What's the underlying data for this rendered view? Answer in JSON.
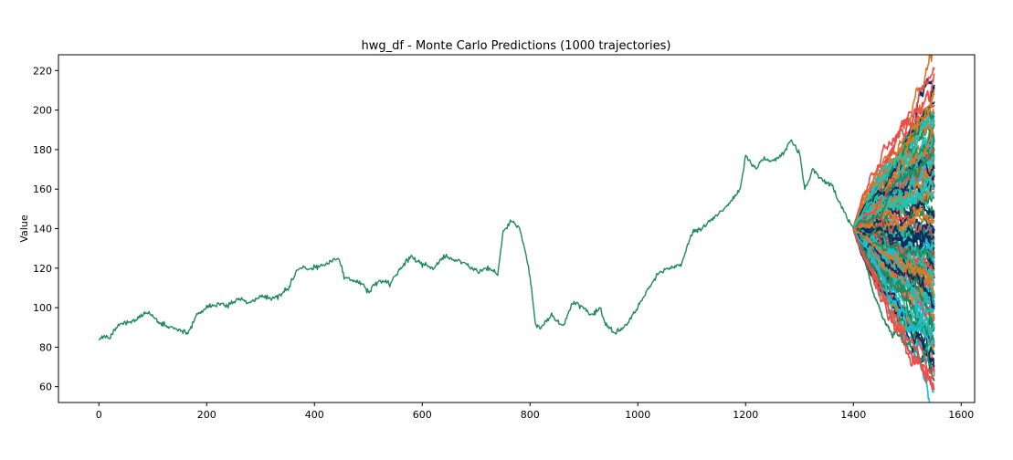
{
  "chart_data": {
    "type": "line",
    "title": "hwg_df - Monte Carlo Predictions (1000 trajectories)",
    "xlabel": "",
    "ylabel": "Value",
    "xlim": [
      -75,
      1625
    ],
    "ylim": [
      52,
      228
    ],
    "x_ticks": [
      0,
      200,
      400,
      600,
      800,
      1000,
      1200,
      1400,
      1600
    ],
    "y_ticks": [
      60,
      80,
      100,
      120,
      140,
      160,
      180,
      200,
      220
    ],
    "grid": false,
    "legend": "none",
    "history": {
      "color": "#1f8a5a",
      "points": [
        [
          0,
          84
        ],
        [
          10,
          86
        ],
        [
          20,
          84
        ],
        [
          30,
          89
        ],
        [
          45,
          92
        ],
        [
          60,
          93
        ],
        [
          80,
          96
        ],
        [
          90,
          98
        ],
        [
          110,
          93
        ],
        [
          130,
          90
        ],
        [
          150,
          89
        ],
        [
          165,
          87
        ],
        [
          180,
          96
        ],
        [
          200,
          100
        ],
        [
          220,
          102
        ],
        [
          240,
          101
        ],
        [
          260,
          105
        ],
        [
          280,
          102
        ],
        [
          300,
          106
        ],
        [
          320,
          104
        ],
        [
          350,
          109
        ],
        [
          370,
          120
        ],
        [
          390,
          120
        ],
        [
          410,
          121
        ],
        [
          430,
          123
        ],
        [
          445,
          125
        ],
        [
          455,
          116
        ],
        [
          470,
          114
        ],
        [
          490,
          112
        ],
        [
          500,
          108
        ],
        [
          520,
          114
        ],
        [
          540,
          112
        ],
        [
          560,
          120
        ],
        [
          580,
          126
        ],
        [
          600,
          122
        ],
        [
          620,
          120
        ],
        [
          640,
          126
        ],
        [
          660,
          124
        ],
        [
          680,
          122
        ],
        [
          700,
          118
        ],
        [
          720,
          120
        ],
        [
          740,
          117
        ],
        [
          750,
          138
        ],
        [
          765,
          144
        ],
        [
          780,
          140
        ],
        [
          790,
          130
        ],
        [
          800,
          116
        ],
        [
          810,
          92
        ],
        [
          820,
          90
        ],
        [
          840,
          96
        ],
        [
          860,
          90
        ],
        [
          880,
          103
        ],
        [
          900,
          100
        ],
        [
          915,
          96
        ],
        [
          930,
          100
        ],
        [
          940,
          92
        ],
        [
          960,
          87
        ],
        [
          980,
          92
        ],
        [
          1000,
          100
        ],
        [
          1020,
          110
        ],
        [
          1040,
          118
        ],
        [
          1060,
          120
        ],
        [
          1080,
          122
        ],
        [
          1100,
          138
        ],
        [
          1120,
          140
        ],
        [
          1140,
          145
        ],
        [
          1160,
          150
        ],
        [
          1180,
          156
        ],
        [
          1190,
          160
        ],
        [
          1200,
          176
        ],
        [
          1220,
          170
        ],
        [
          1230,
          175
        ],
        [
          1250,
          174
        ],
        [
          1270,
          178
        ],
        [
          1285,
          185
        ],
        [
          1300,
          178
        ],
        [
          1310,
          160
        ],
        [
          1325,
          170
        ],
        [
          1340,
          165
        ],
        [
          1360,
          162
        ],
        [
          1380,
          150
        ],
        [
          1400,
          140
        ]
      ]
    },
    "simulations": {
      "count": 1000,
      "x_start": 1400,
      "x_end": 1550,
      "start_value": 140,
      "end_min": 60,
      "end_max": 220,
      "palette": [
        "#0b2c5c",
        "#17becf",
        "#ef4b4b",
        "#d97a28",
        "#1f8a5a",
        "#23c3b0"
      ]
    }
  }
}
